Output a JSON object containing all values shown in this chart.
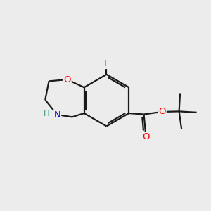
{
  "bg_color": "#ececec",
  "bond_color": "#1a1a1a",
  "atom_colors": {
    "F": "#cc00cc",
    "O": "#ff0000",
    "N": "#0000cc",
    "H": "#3a9a8a",
    "C": "#1a1a1a"
  },
  "figsize": [
    3.0,
    3.0
  ],
  "dpi": 100
}
